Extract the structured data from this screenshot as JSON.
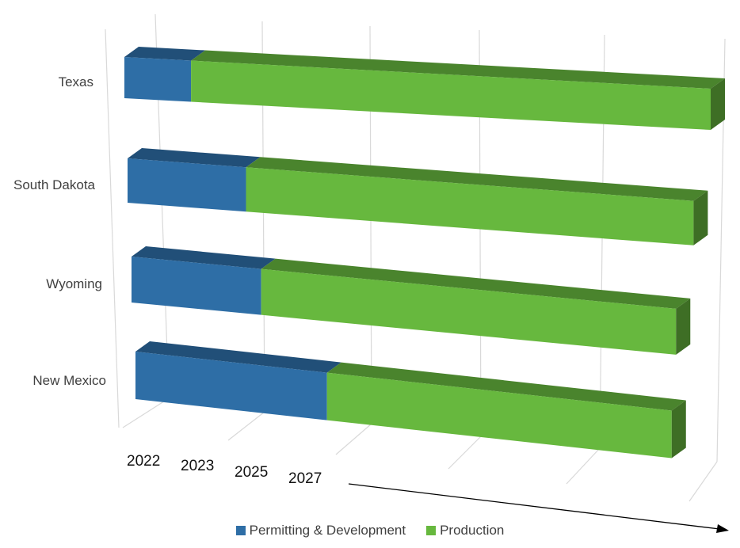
{
  "chart_data": {
    "type": "bar",
    "orientation": "horizontal",
    "stacked": true,
    "style": "3d",
    "categories": [
      "Texas",
      "South Dakota",
      "Wyoming",
      "New Mexico"
    ],
    "series": [
      {
        "name": "Permitting & Development",
        "color": "#2E6EA6",
        "values": [
          0.5,
          0.9,
          1.0,
          1.5
        ]
      },
      {
        "name": "Production",
        "color": "#67B83E",
        "values": [
          3.9,
          3.4,
          3.2,
          2.7
        ]
      }
    ],
    "x_ticks": [
      "2022",
      "2023",
      "2025",
      "2027"
    ],
    "xlim": [
      0,
      4.4
    ],
    "grid": true,
    "legend": "bottom"
  }
}
